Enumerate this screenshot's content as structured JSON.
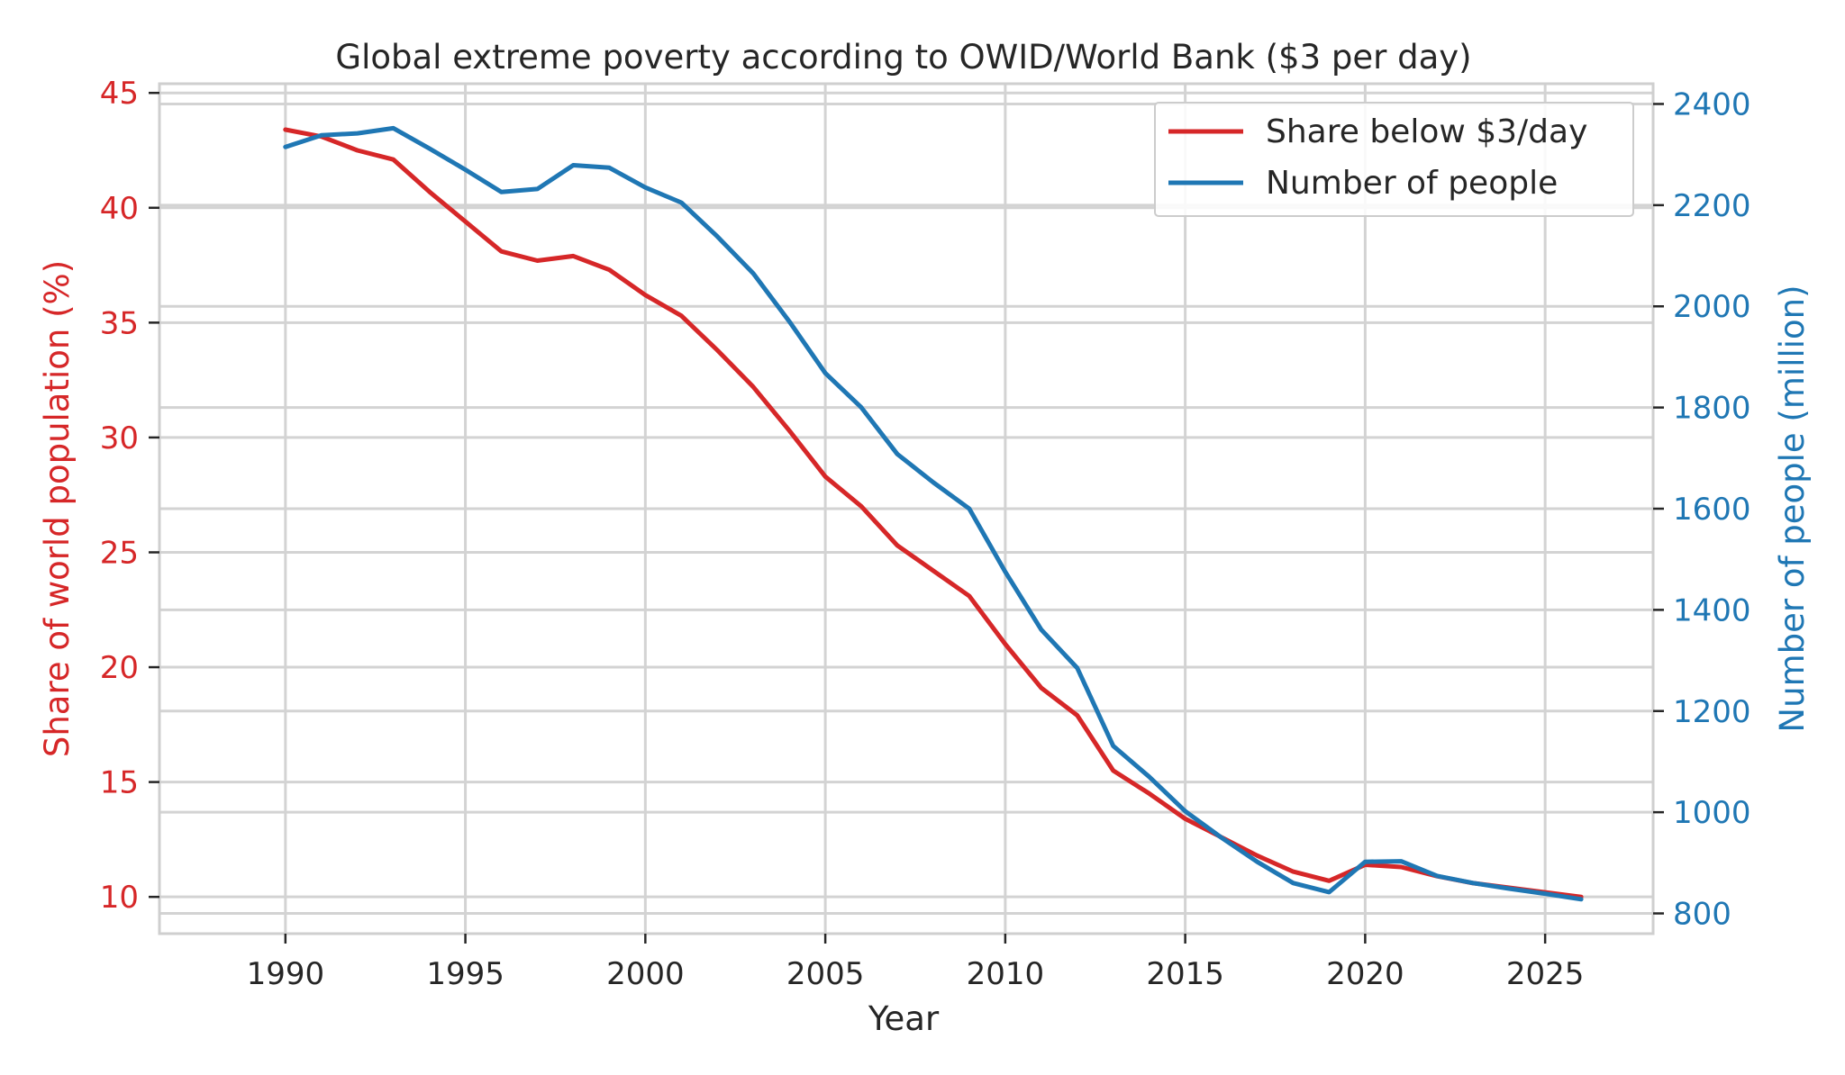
{
  "chart_data": {
    "type": "line",
    "title": "Global extreme poverty according to OWID/World Bank ($3 per day)",
    "xlabel": "Year",
    "ylabel_left": "Share of world population (%)",
    "ylabel_right": "Number of people (million)",
    "xlim": [
      1986.5,
      2028
    ],
    "ylim_left": [
      8.4,
      45.4
    ],
    "ylim_right": [
      760,
      2440
    ],
    "x_ticks": [
      1990,
      1995,
      2000,
      2005,
      2010,
      2015,
      2020,
      2025
    ],
    "y_left_ticks": [
      10,
      15,
      20,
      25,
      30,
      35,
      40,
      45
    ],
    "y_right_ticks": [
      800,
      1000,
      1200,
      1400,
      1600,
      1800,
      2000,
      2200,
      2400
    ],
    "grid": true,
    "legend_position": "top-right",
    "colors": {
      "share": "#d62728",
      "number": "#1f77b4",
      "text": "#262626"
    },
    "x": [
      1990,
      1991,
      1992,
      1993,
      1994,
      1995,
      1996,
      1997,
      1998,
      1999,
      2000,
      2001,
      2002,
      2003,
      2004,
      2005,
      2006,
      2007,
      2008,
      2009,
      2010,
      2011,
      2012,
      2013,
      2014,
      2015,
      2016,
      2017,
      2018,
      2019,
      2020,
      2021,
      2022,
      2023,
      2024,
      2025,
      2026
    ],
    "series": [
      {
        "name": "Share below $3/day",
        "axis": "left",
        "values": [
          43.4,
          43.1,
          42.5,
          42.1,
          40.7,
          39.4,
          38.1,
          37.7,
          37.9,
          37.3,
          36.2,
          35.3,
          33.8,
          32.2,
          30.3,
          28.3,
          27.0,
          25.3,
          24.2,
          23.1,
          21.0,
          19.1,
          17.9,
          15.5,
          14.5,
          13.4,
          12.6,
          11.8,
          11.1,
          10.7,
          11.4,
          11.3,
          10.9,
          10.6,
          10.4,
          10.2,
          10.0
        ],
        "color": "#d62728"
      },
      {
        "name": "Number of people",
        "axis": "right",
        "values": [
          2315,
          2338,
          2342,
          2352,
          2312,
          2270,
          2226,
          2232,
          2279,
          2274,
          2235,
          2205,
          2138,
          2065,
          1970,
          1868,
          1800,
          1708,
          1652,
          1600,
          1475,
          1361,
          1285,
          1131,
          1070,
          1002,
          950,
          902,
          860,
          842,
          902,
          903,
          874,
          860,
          849,
          839,
          828
        ],
        "color": "#1f77b4"
      }
    ]
  }
}
